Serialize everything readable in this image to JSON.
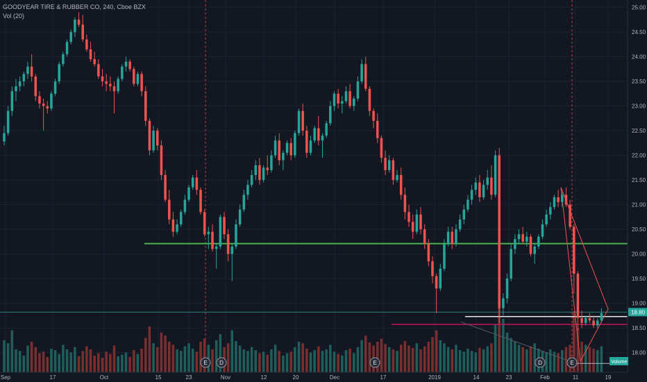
{
  "header": {
    "title": "GOODYEAR TIRE & RUBBER CO, 240, Cboe BZX",
    "volume_label": "Vol (20)"
  },
  "colors": {
    "background": "#131722",
    "up": "#26a69a",
    "down": "#ef5350",
    "grid": "#1e2230",
    "support": "#4caf50",
    "resistance": "#c2185b",
    "level_white": "#e8e8e8",
    "teal_line": "#2a7f77",
    "triangle": "#ef5350",
    "event_line": "#b34646"
  },
  "chart_data": {
    "type": "candlestick",
    "title": "GOODYEAR TIRE & RUBBER CO, 240, Cboe BZX",
    "x_ticks": [
      "Sep",
      "17",
      "Oct",
      "15",
      "23",
      "Nov",
      "12",
      "20",
      "Dec",
      "17",
      "2019",
      "14",
      "23",
      "Feb",
      "11",
      "19"
    ],
    "y_ticks": [
      "25.00",
      "24.50",
      "24.00",
      "23.50",
      "23.00",
      "22.50",
      "22.00",
      "21.50",
      "21.00",
      "20.50",
      "20.00",
      "19.50",
      "19.00",
      "18.50",
      "18.00"
    ],
    "ylim": [
      17.6,
      25.15
    ],
    "last_price": "18.80",
    "volume_badge": "Volume",
    "volume_series_name": "Vol (20)",
    "event_markers": [
      "E",
      "D",
      "E",
      "D",
      "E"
    ],
    "horizontal_levels": [
      {
        "price": 20.21
      },
      {
        "price": 18.73
      },
      {
        "price": 18.57
      },
      {
        "price": 18.82
      }
    ],
    "candles": [
      [
        22.28,
        22.6,
        22.2,
        22.45
      ],
      [
        22.45,
        23.0,
        22.4,
        22.9
      ],
      [
        22.9,
        23.4,
        22.8,
        23.3
      ],
      [
        23.3,
        23.55,
        23.1,
        23.4
      ],
      [
        23.4,
        23.6,
        23.3,
        23.5
      ],
      [
        23.5,
        23.7,
        23.4,
        23.65
      ],
      [
        23.65,
        23.9,
        23.55,
        23.8
      ],
      [
        23.8,
        24.05,
        23.5,
        23.6
      ],
      [
        23.6,
        23.65,
        23.1,
        23.2
      ],
      [
        23.2,
        23.3,
        22.95,
        23.05
      ],
      [
        23.05,
        23.15,
        22.5,
        23.0
      ],
      [
        23.0,
        23.1,
        22.85,
        22.95
      ],
      [
        22.95,
        23.3,
        22.9,
        23.25
      ],
      [
        23.25,
        23.55,
        23.2,
        23.5
      ],
      [
        23.5,
        23.9,
        23.45,
        23.85
      ],
      [
        23.85,
        24.1,
        23.8,
        24.05
      ],
      [
        24.05,
        24.35,
        24.0,
        24.3
      ],
      [
        24.3,
        24.55,
        24.25,
        24.5
      ],
      [
        24.5,
        24.8,
        24.4,
        24.75
      ],
      [
        24.75,
        24.9,
        24.6,
        24.65
      ],
      [
        24.65,
        24.85,
        24.3,
        24.35
      ],
      [
        24.35,
        24.45,
        24.1,
        24.15
      ],
      [
        24.15,
        24.3,
        23.9,
        23.95
      ],
      [
        23.95,
        24.1,
        23.8,
        23.85
      ],
      [
        23.85,
        23.95,
        23.55,
        23.6
      ],
      [
        23.6,
        23.75,
        23.4,
        23.5
      ],
      [
        23.5,
        23.65,
        23.3,
        23.45
      ],
      [
        23.45,
        23.6,
        23.3,
        23.4
      ],
      [
        23.4,
        23.5,
        22.85,
        23.3
      ],
      [
        23.3,
        23.6,
        23.25,
        23.55
      ],
      [
        23.55,
        23.85,
        23.5,
        23.8
      ],
      [
        23.8,
        24.0,
        23.7,
        23.9
      ],
      [
        23.9,
        23.95,
        23.7,
        23.75
      ],
      [
        23.75,
        23.8,
        23.4,
        23.45
      ],
      [
        23.45,
        23.7,
        23.4,
        23.65
      ],
      [
        23.65,
        23.7,
        23.2,
        23.3
      ],
      [
        23.3,
        23.4,
        22.6,
        22.7
      ],
      [
        22.7,
        22.75,
        22.0,
        22.1
      ],
      [
        22.1,
        22.6,
        22.05,
        22.5
      ],
      [
        22.5,
        22.55,
        22.1,
        22.2
      ],
      [
        22.2,
        22.3,
        21.5,
        21.6
      ],
      [
        21.6,
        21.7,
        21.05,
        21.1
      ],
      [
        21.1,
        21.3,
        20.6,
        20.7
      ],
      [
        20.7,
        20.85,
        20.35,
        20.45
      ],
      [
        20.45,
        20.7,
        20.4,
        20.6
      ],
      [
        20.6,
        20.9,
        20.55,
        20.85
      ],
      [
        20.85,
        21.2,
        20.8,
        21.1
      ],
      [
        21.1,
        21.4,
        21.05,
        21.35
      ],
      [
        21.35,
        21.6,
        21.3,
        21.55
      ],
      [
        21.55,
        21.7,
        21.2,
        21.3
      ],
      [
        21.3,
        21.35,
        20.8,
        20.85
      ],
      [
        20.85,
        20.9,
        20.35,
        20.4
      ],
      [
        20.4,
        20.55,
        20.1,
        20.45
      ],
      [
        20.45,
        20.6,
        20.05,
        20.1
      ],
      [
        20.1,
        20.2,
        19.7,
        20.15
      ],
      [
        20.15,
        20.8,
        20.1,
        20.75
      ],
      [
        20.75,
        20.85,
        20.3,
        20.4
      ],
      [
        20.4,
        20.5,
        19.85,
        20.0
      ],
      [
        20.0,
        20.2,
        19.45,
        20.15
      ],
      [
        20.15,
        20.7,
        20.1,
        20.6
      ],
      [
        20.6,
        21.0,
        20.55,
        20.9
      ],
      [
        20.9,
        21.3,
        20.85,
        21.2
      ],
      [
        21.2,
        21.5,
        21.1,
        21.4
      ],
      [
        21.4,
        21.7,
        21.35,
        21.6
      ],
      [
        21.6,
        21.9,
        21.5,
        21.8
      ],
      [
        21.8,
        21.95,
        21.4,
        21.5
      ],
      [
        21.5,
        21.8,
        21.45,
        21.75
      ],
      [
        21.75,
        22.0,
        21.6,
        21.7
      ],
      [
        21.7,
        22.1,
        21.65,
        22.0
      ],
      [
        22.0,
        22.4,
        21.95,
        22.3
      ],
      [
        22.3,
        22.45,
        21.8,
        21.9
      ],
      [
        21.9,
        22.1,
        21.7,
        22.05
      ],
      [
        22.05,
        22.3,
        22.0,
        22.25
      ],
      [
        22.25,
        22.35,
        21.9,
        22.0
      ],
      [
        22.0,
        22.5,
        21.95,
        22.45
      ],
      [
        22.45,
        22.95,
        22.4,
        22.9
      ],
      [
        22.9,
        23.05,
        22.4,
        22.5
      ],
      [
        22.5,
        22.6,
        21.95,
        22.05
      ],
      [
        22.05,
        22.4,
        22.0,
        22.3
      ],
      [
        22.3,
        22.6,
        22.25,
        22.55
      ],
      [
        22.55,
        22.8,
        22.2,
        22.3
      ],
      [
        22.3,
        22.45,
        21.95,
        22.4
      ],
      [
        22.4,
        22.7,
        22.35,
        22.65
      ],
      [
        22.65,
        23.1,
        22.6,
        23.0
      ],
      [
        23.0,
        23.3,
        22.9,
        23.25
      ],
      [
        23.25,
        23.35,
        22.95,
        23.05
      ],
      [
        23.05,
        23.2,
        22.85,
        23.1
      ],
      [
        23.1,
        23.4,
        23.05,
        23.3
      ],
      [
        23.3,
        23.45,
        22.95,
        23.0
      ],
      [
        23.0,
        23.2,
        22.9,
        23.15
      ],
      [
        23.15,
        23.6,
        23.1,
        23.5
      ],
      [
        23.5,
        23.95,
        23.45,
        23.85
      ],
      [
        23.85,
        24.0,
        23.3,
        23.35
      ],
      [
        23.35,
        23.4,
        22.8,
        22.9
      ],
      [
        22.9,
        22.95,
        22.55,
        22.7
      ],
      [
        22.7,
        22.85,
        22.25,
        22.35
      ],
      [
        22.35,
        22.4,
        21.85,
        21.95
      ],
      [
        21.95,
        22.1,
        21.6,
        21.7
      ],
      [
        21.7,
        22.0,
        21.65,
        21.9
      ],
      [
        21.9,
        21.95,
        21.4,
        21.5
      ],
      [
        21.5,
        21.7,
        21.45,
        21.6
      ],
      [
        21.6,
        21.75,
        21.1,
        21.2
      ],
      [
        21.2,
        21.35,
        20.7,
        20.85
      ],
      [
        20.85,
        21.0,
        20.55,
        20.65
      ],
      [
        20.65,
        20.8,
        20.3,
        20.45
      ],
      [
        20.45,
        20.9,
        20.4,
        20.8
      ],
      [
        20.8,
        20.95,
        20.4,
        20.5
      ],
      [
        20.5,
        20.6,
        20.1,
        20.2
      ],
      [
        20.2,
        20.3,
        19.75,
        19.85
      ],
      [
        19.85,
        19.95,
        19.4,
        19.55
      ],
      [
        19.55,
        19.6,
        18.8,
        19.3
      ],
      [
        19.3,
        19.8,
        19.25,
        19.7
      ],
      [
        19.7,
        20.3,
        19.65,
        20.2
      ],
      [
        20.2,
        20.55,
        20.15,
        20.45
      ],
      [
        20.45,
        20.55,
        20.1,
        20.2
      ],
      [
        20.2,
        20.6,
        20.15,
        20.5
      ],
      [
        20.5,
        20.8,
        20.45,
        20.7
      ],
      [
        20.7,
        21.0,
        20.6,
        20.9
      ],
      [
        20.9,
        21.2,
        20.85,
        21.1
      ],
      [
        21.1,
        21.4,
        21.0,
        21.3
      ],
      [
        21.3,
        21.55,
        21.2,
        21.45
      ],
      [
        21.45,
        21.6,
        21.05,
        21.15
      ],
      [
        21.15,
        21.5,
        21.1,
        21.4
      ],
      [
        21.4,
        21.7,
        21.3,
        21.55
      ],
      [
        21.55,
        21.8,
        21.1,
        21.2
      ],
      [
        21.2,
        22.1,
        21.15,
        22.0
      ],
      [
        22.0,
        22.15,
        18.6,
        18.9
      ],
      [
        18.9,
        19.2,
        18.75,
        19.1
      ],
      [
        19.1,
        19.6,
        19.0,
        19.5
      ],
      [
        19.5,
        20.2,
        19.45,
        20.1
      ],
      [
        20.1,
        20.4,
        20.0,
        20.3
      ],
      [
        20.3,
        20.5,
        20.2,
        20.4
      ],
      [
        20.4,
        20.55,
        20.2,
        20.25
      ],
      [
        20.25,
        20.45,
        20.15,
        20.35
      ],
      [
        20.35,
        20.4,
        19.95,
        20.0
      ],
      [
        20.0,
        20.2,
        19.8,
        20.15
      ],
      [
        20.15,
        20.4,
        20.1,
        20.35
      ],
      [
        20.35,
        20.7,
        20.3,
        20.6
      ],
      [
        20.6,
        20.9,
        20.55,
        20.8
      ],
      [
        20.8,
        21.05,
        20.7,
        20.95
      ],
      [
        20.95,
        21.2,
        20.9,
        21.15
      ],
      [
        21.15,
        21.3,
        20.95,
        21.05
      ],
      [
        21.05,
        21.25,
        20.95,
        21.2
      ],
      [
        21.2,
        21.35,
        20.95,
        21.0
      ],
      [
        21.0,
        21.1,
        20.5,
        20.55
      ],
      [
        20.55,
        20.6,
        19.2,
        19.6
      ],
      [
        19.6,
        19.65,
        18.45,
        18.7
      ],
      [
        18.7,
        18.85,
        18.5,
        18.6
      ],
      [
        18.6,
        18.75,
        18.55,
        18.7
      ],
      [
        18.7,
        18.8,
        18.6,
        18.65
      ],
      [
        18.65,
        18.75,
        18.5,
        18.55
      ],
      [
        18.55,
        18.7,
        18.5,
        18.65
      ],
      [
        18.65,
        18.9,
        18.6,
        18.8
      ]
    ],
    "volumes": [
      0.42,
      0.38,
      0.55,
      0.3,
      0.28,
      0.22,
      0.35,
      0.4,
      0.33,
      0.25,
      0.27,
      0.2,
      0.31,
      0.29,
      0.24,
      0.36,
      0.3,
      0.26,
      0.33,
      0.21,
      0.28,
      0.34,
      0.3,
      0.22,
      0.25,
      0.19,
      0.27,
      0.24,
      0.35,
      0.21,
      0.23,
      0.26,
      0.2,
      0.29,
      0.24,
      0.31,
      0.45,
      0.6,
      0.38,
      0.33,
      0.52,
      0.48,
      0.4,
      0.36,
      0.3,
      0.28,
      0.34,
      0.38,
      0.31,
      0.27,
      0.4,
      0.44,
      0.36,
      0.3,
      0.42,
      0.5,
      0.33,
      0.38,
      0.55,
      0.41,
      0.35,
      0.3,
      0.28,
      0.33,
      0.29,
      0.25,
      0.27,
      0.23,
      0.3,
      0.36,
      0.28,
      0.22,
      0.25,
      0.27,
      0.33,
      0.4,
      0.38,
      0.31,
      0.26,
      0.29,
      0.34,
      0.28,
      0.3,
      0.36,
      0.27,
      0.24,
      0.22,
      0.29,
      0.31,
      0.25,
      0.33,
      0.42,
      0.48,
      0.39,
      0.35,
      0.4,
      0.44,
      0.37,
      0.33,
      0.3,
      0.28,
      0.36,
      0.41,
      0.35,
      0.32,
      0.38,
      0.3,
      0.34,
      0.4,
      0.46,
      0.55,
      0.42,
      0.38,
      0.33,
      0.3,
      0.36,
      0.29,
      0.27,
      0.31,
      0.28,
      0.26,
      0.32,
      0.3,
      0.34,
      0.38,
      0.62,
      1.0,
      0.7,
      0.52,
      0.45,
      0.4,
      0.36,
      0.33,
      0.3,
      0.34,
      0.38,
      0.31,
      0.28,
      0.26,
      0.3,
      0.27,
      0.25,
      0.29,
      0.33,
      0.36,
      0.8,
      0.58,
      0.4,
      0.36,
      0.33,
      0.31,
      0.29,
      0.34
    ]
  }
}
